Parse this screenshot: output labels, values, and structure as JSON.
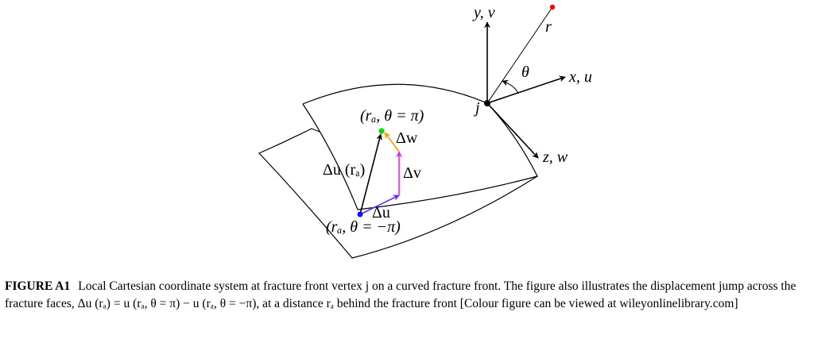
{
  "diagram": {
    "axis_y_label": "y, v",
    "axis_x_label": "x, u",
    "axis_z_label": "z, w",
    "radial_label": "r",
    "angle_label": "θ",
    "vertex_label": "j",
    "point_top_label": "(rₐ, θ = π)",
    "point_bottom_label": "(rₐ, θ = −π)",
    "vector_du_label": "Δu",
    "vector_dv_label": "Δv",
    "vector_dw_label": "Δw",
    "vector_total_label": "Δu (rₐ)",
    "colors": {
      "radial_endpoint": "#ff0000",
      "top_point": "#00dd00",
      "bottom_point": "#1010ff",
      "du_vector": "#5533ff",
      "dv_vector": "#ee22ee",
      "dw_vector": "#ff9900",
      "total_vector": "#000000"
    }
  },
  "caption": {
    "label": "FIGURE A1",
    "text": "Local Cartesian coordinate system at fracture front vertex j on a curved fracture front. The figure also illustrates the displacement jump across the fracture faces, Δu (rₐ) = u (rₐ, θ = π) − u (rₐ, θ = −π), at a distance rₐ behind the fracture front [Colour figure can be viewed at wileyonlinelibrary.com]"
  }
}
